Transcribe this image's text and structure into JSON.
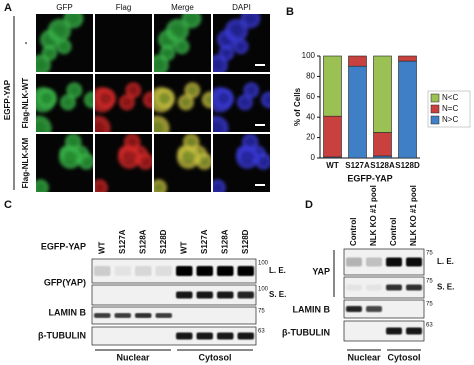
{
  "panel_a": {
    "letter": "A",
    "columns": [
      "GFP",
      "Flag",
      "Merge",
      "DAPI"
    ],
    "rows": [
      "-",
      "Flag-NLK-WT",
      "Flag-NLK-KM"
    ],
    "group": "EGFP-YAP"
  },
  "chart_data": {
    "type": "stacked_bar",
    "letter": "B",
    "categories": [
      "WT",
      "S127A",
      "S128A",
      "S128D"
    ],
    "series": [
      {
        "name": "N>C",
        "color": "#3f7fc6",
        "values": [
          1,
          90,
          2,
          95
        ]
      },
      {
        "name": "N=C",
        "color": "#c8413e",
        "values": [
          40,
          10,
          23,
          5
        ]
      },
      {
        "name": "N<C",
        "color": "#9bc053",
        "values": [
          59,
          0,
          75,
          0
        ]
      }
    ],
    "ylabel": "% of Cells",
    "xlabel": "EGFP-YAP",
    "ylim": [
      0,
      100
    ],
    "yticks": [
      0,
      20,
      40,
      60,
      80,
      100
    ]
  },
  "panel_c": {
    "letter": "C",
    "lanes": [
      "WT",
      "S127A",
      "S128A",
      "S128D",
      "WT",
      "S127A",
      "S128A",
      "S128D"
    ],
    "group": "EGFP-YAP",
    "rows": [
      "GFP(YAP)",
      "LAMIN B",
      "β-TUBULIN"
    ],
    "exposures": [
      "L. E.",
      "S. E."
    ],
    "markers": [
      100,
      100,
      75,
      63
    ],
    "fractions": [
      "Nuclear",
      "Cytosol"
    ]
  },
  "panel_d": {
    "letter": "D",
    "lanes": [
      "Control",
      "NLK KO #1 pool",
      "Control",
      "NLK KO #1 pool"
    ],
    "rows": [
      "YAP",
      "LAMIN B",
      "β-TUBULIN"
    ],
    "exposures": [
      "L. E.",
      "S. E."
    ],
    "markers": [
      75,
      75,
      75,
      63
    ],
    "fractions": [
      "Nuclear",
      "Cytosol"
    ]
  }
}
